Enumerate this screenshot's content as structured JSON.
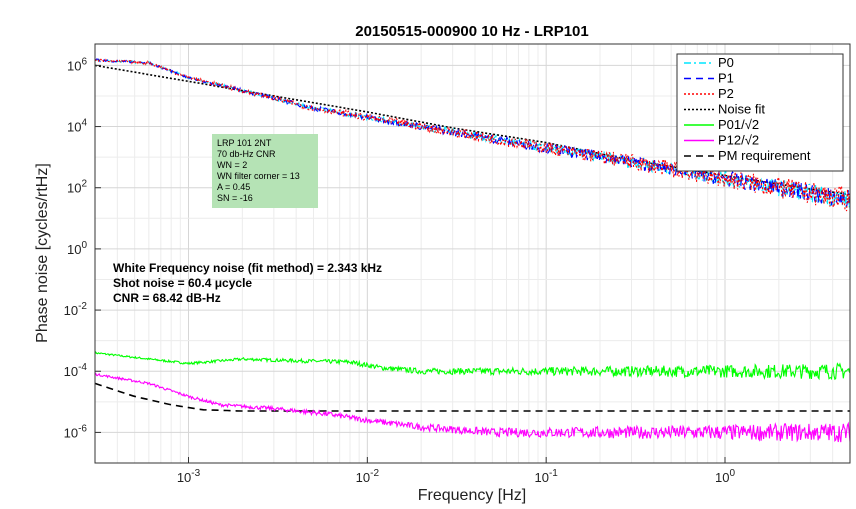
{
  "chart_data": {
    "type": "line",
    "title": "20150515-000900 10 Hz - LRP101",
    "xlabel": "Frequency [Hz]",
    "ylabel": "Phase noise [cycles/rtHz]",
    "xscale": "log",
    "yscale": "log",
    "xlim": [
      0.0003,
      5
    ],
    "ylim": [
      1e-07,
      5000000.0
    ],
    "x_tick_labels": [
      "10^-3",
      "10^-2",
      "10^-1",
      "10^0"
    ],
    "y_tick_labels": [
      "10^-6",
      "10^-4",
      "10^-2",
      "10^0",
      "10^2",
      "10^4",
      "10^6"
    ],
    "grid": true,
    "legend_position": "top-right",
    "series": [
      {
        "name": "P0",
        "color": "#00e5ff",
        "style": "dash-dot",
        "x": [
          0.0003,
          0.0006,
          0.001,
          0.002,
          0.005,
          0.01,
          0.02,
          0.05,
          0.1,
          0.3,
          1,
          5
        ],
        "y": [
          1500000,
          1200000,
          400000,
          150000,
          40000,
          20000,
          10000,
          4000,
          2000,
          700,
          200,
          40
        ]
      },
      {
        "name": "P1",
        "color": "#0000ff",
        "style": "dash",
        "x": [
          0.0003,
          0.0006,
          0.001,
          0.002,
          0.005,
          0.01,
          0.02,
          0.05,
          0.1,
          0.3,
          1,
          5
        ],
        "y": [
          1500000,
          1200000,
          400000,
          150000,
          40000,
          20000,
          10000,
          4000,
          2000,
          700,
          200,
          40
        ]
      },
      {
        "name": "P2",
        "color": "#ff0000",
        "style": "dotted",
        "x": [
          0.0003,
          0.0006,
          0.001,
          0.002,
          0.005,
          0.01,
          0.02,
          0.05,
          0.1,
          0.3,
          1,
          5
        ],
        "y": [
          1500000,
          1200000,
          400000,
          150000,
          40000,
          20000,
          10000,
          4000,
          2000,
          700,
          200,
          40
        ]
      },
      {
        "name": "Noise fit",
        "color": "#000000",
        "style": "dotted",
        "x": [
          0.0003,
          0.001,
          0.003,
          0.01,
          0.03,
          0.1,
          0.3,
          1,
          3,
          5
        ],
        "y": [
          1000000,
          300000,
          100000,
          30000,
          9000,
          3000,
          800,
          250,
          90,
          60
        ]
      },
      {
        "name": "P01/√2",
        "color": "#00ff00",
        "style": "solid",
        "x": [
          0.0003,
          0.0006,
          0.001,
          0.002,
          0.004,
          0.008,
          0.012,
          0.02,
          0.05,
          0.1,
          0.5,
          1,
          5
        ],
        "y": [
          0.0004,
          0.00025,
          0.00018,
          0.00025,
          0.00022,
          0.0002,
          0.00013,
          0.0001,
          0.0001,
          0.0001,
          0.0001,
          0.0001,
          0.0001
        ]
      },
      {
        "name": "P12/√2",
        "color": "#ff00ff",
        "style": "solid",
        "x": [
          0.0003,
          0.0006,
          0.001,
          0.0015,
          0.003,
          0.006,
          0.01,
          0.02,
          0.05,
          0.1,
          0.5,
          1,
          5
        ],
        "y": [
          8e-05,
          4e-05,
          1.5e-05,
          8e-06,
          6e-06,
          4e-06,
          2.5e-06,
          1.5e-06,
          1e-06,
          1e-06,
          1e-06,
          1e-06,
          1e-06
        ]
      },
      {
        "name": "PM requirement",
        "color": "#000000",
        "style": "dash",
        "x": [
          0.0003,
          0.0005,
          0.0008,
          0.0012,
          0.002,
          0.004,
          0.01,
          0.1,
          1,
          5
        ],
        "y": [
          4e-05,
          1.5e-05,
          8e-06,
          5.5e-06,
          5e-06,
          5e-06,
          5e-06,
          5e-06,
          5e-06,
          5e-06
        ]
      }
    ],
    "info_box": {
      "lines": [
        "LRP 101 2NT",
        "70 db-Hz CNR",
        "WN = 2",
        "WN filter corner = 13",
        "A = 0.45",
        "SN = -16"
      ],
      "background": "#b5e3b5"
    },
    "annotations": [
      "White Frequency noise (fit method) = 2.343 kHz",
      "Shot noise = 60.4  μcycle",
      "CNR = 68.42  dB-Hz"
    ]
  }
}
